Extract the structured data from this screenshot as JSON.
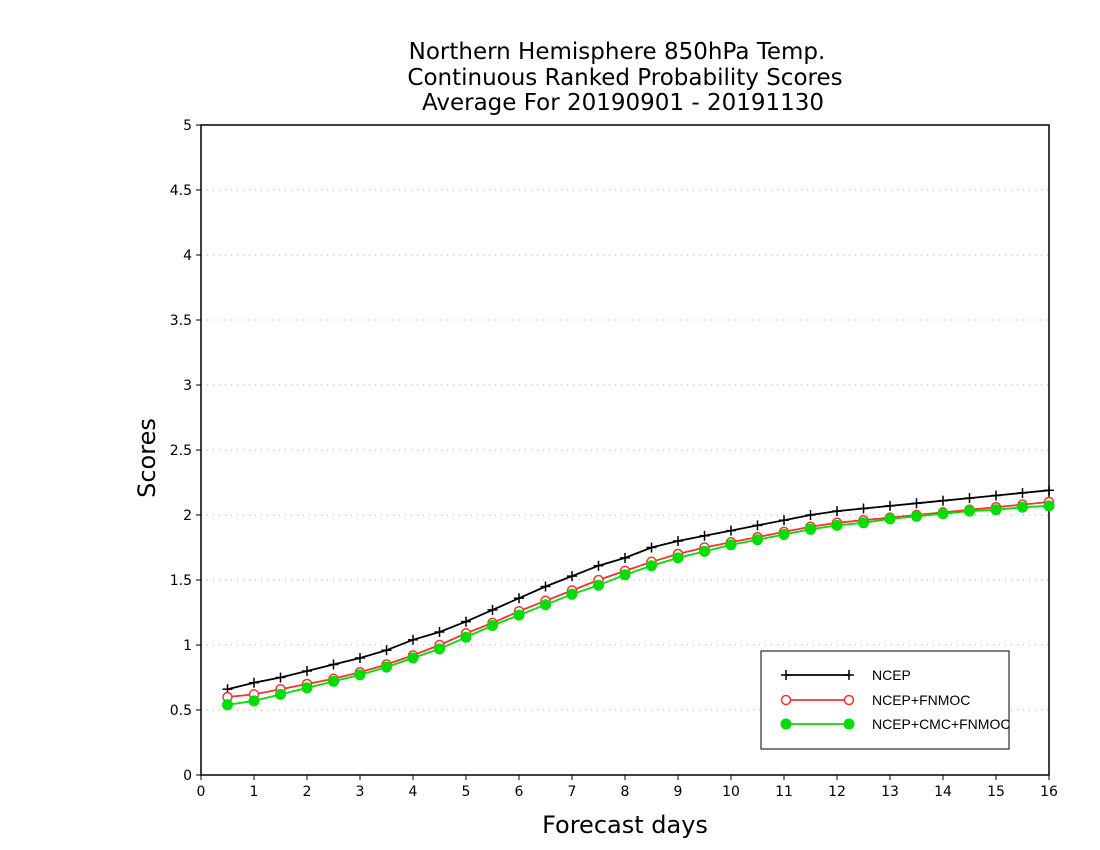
{
  "chart_data": {
    "type": "line",
    "title": [
      "Northern Hemisphere 850hPa Temp.",
      "Continuous Ranked Probability Scores",
      "Average For 20190901 - 20191130"
    ],
    "xlabel": "Forecast days",
    "ylabel": "Scores",
    "xlim": [
      0,
      16
    ],
    "ylim": [
      0,
      5
    ],
    "xticks": [
      "0",
      "1",
      "2",
      "3",
      "4",
      "5",
      "6",
      "7",
      "8",
      "9",
      "10",
      "11",
      "12",
      "13",
      "14",
      "15",
      "16"
    ],
    "yticks": [
      "0",
      "0.5",
      "1",
      "1.5",
      "2",
      "2.5",
      "3",
      "3.5",
      "4",
      "4.5",
      "5"
    ],
    "grid": "horizontal dotted",
    "legend_position": "bottom-right",
    "x": [
      0.5,
      1,
      1.5,
      2,
      2.5,
      3,
      3.5,
      4,
      4.5,
      5,
      5.5,
      6,
      6.5,
      7,
      7.5,
      8,
      8.5,
      9,
      9.5,
      10,
      10.5,
      11,
      11.5,
      12,
      12.5,
      13,
      13.5,
      14,
      14.5,
      15,
      15.5,
      16
    ],
    "series": [
      {
        "name": "NCEP",
        "color": "#000000",
        "marker": "plus",
        "values": [
          0.66,
          0.71,
          0.75,
          0.8,
          0.85,
          0.9,
          0.96,
          1.04,
          1.1,
          1.18,
          1.27,
          1.36,
          1.45,
          1.53,
          1.61,
          1.67,
          1.75,
          1.8,
          1.84,
          1.88,
          1.92,
          1.96,
          2.0,
          2.03,
          2.05,
          2.07,
          2.09,
          2.11,
          2.13,
          2.15,
          2.17,
          2.19
        ]
      },
      {
        "name": "NCEP+FNMOC",
        "color": "#ff3030",
        "marker": "open-circle",
        "values": [
          0.6,
          0.62,
          0.66,
          0.7,
          0.74,
          0.79,
          0.85,
          0.92,
          1.0,
          1.09,
          1.17,
          1.26,
          1.34,
          1.42,
          1.5,
          1.57,
          1.64,
          1.7,
          1.75,
          1.79,
          1.83,
          1.87,
          1.91,
          1.94,
          1.96,
          1.98,
          2.0,
          2.02,
          2.04,
          2.06,
          2.08,
          2.1
        ]
      },
      {
        "name": "NCEP+CMC+FNMOC",
        "color": "#00dd00",
        "marker": "filled-circle",
        "values": [
          0.54,
          0.57,
          0.62,
          0.67,
          0.72,
          0.77,
          0.83,
          0.9,
          0.97,
          1.06,
          1.15,
          1.23,
          1.31,
          1.39,
          1.46,
          1.54,
          1.61,
          1.67,
          1.72,
          1.77,
          1.81,
          1.85,
          1.89,
          1.92,
          1.94,
          1.97,
          1.99,
          2.01,
          2.03,
          2.04,
          2.06,
          2.07
        ]
      }
    ]
  }
}
